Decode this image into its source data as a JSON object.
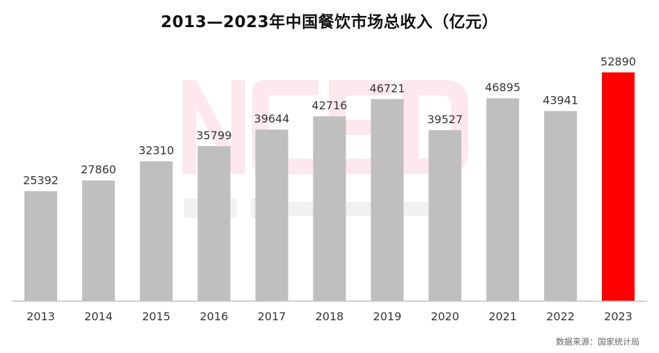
{
  "title": "2013—2023年中国餐饮市场总收入（亿元）",
  "source": "数据来源：国家统计局",
  "colors": {
    "bar_default": "#bfbfbf",
    "bar_highlight": "#ff0000",
    "axis": "#bfbfbf",
    "watermark": "#fde4ea"
  },
  "chart_data": {
    "type": "bar",
    "title": "2013—2023年中国餐饮市场总收入（亿元）",
    "categories": [
      "2013",
      "2014",
      "2015",
      "2016",
      "2017",
      "2018",
      "2019",
      "2020",
      "2021",
      "2022",
      "2023"
    ],
    "values": [
      25392,
      27860,
      32310,
      35799,
      39644,
      42716,
      46721,
      39527,
      46895,
      43941,
      52890
    ],
    "highlight_index": 10,
    "xlabel": "",
    "ylabel": "",
    "ylim": [
      0,
      54000
    ],
    "grid": false,
    "data_labels": true
  }
}
